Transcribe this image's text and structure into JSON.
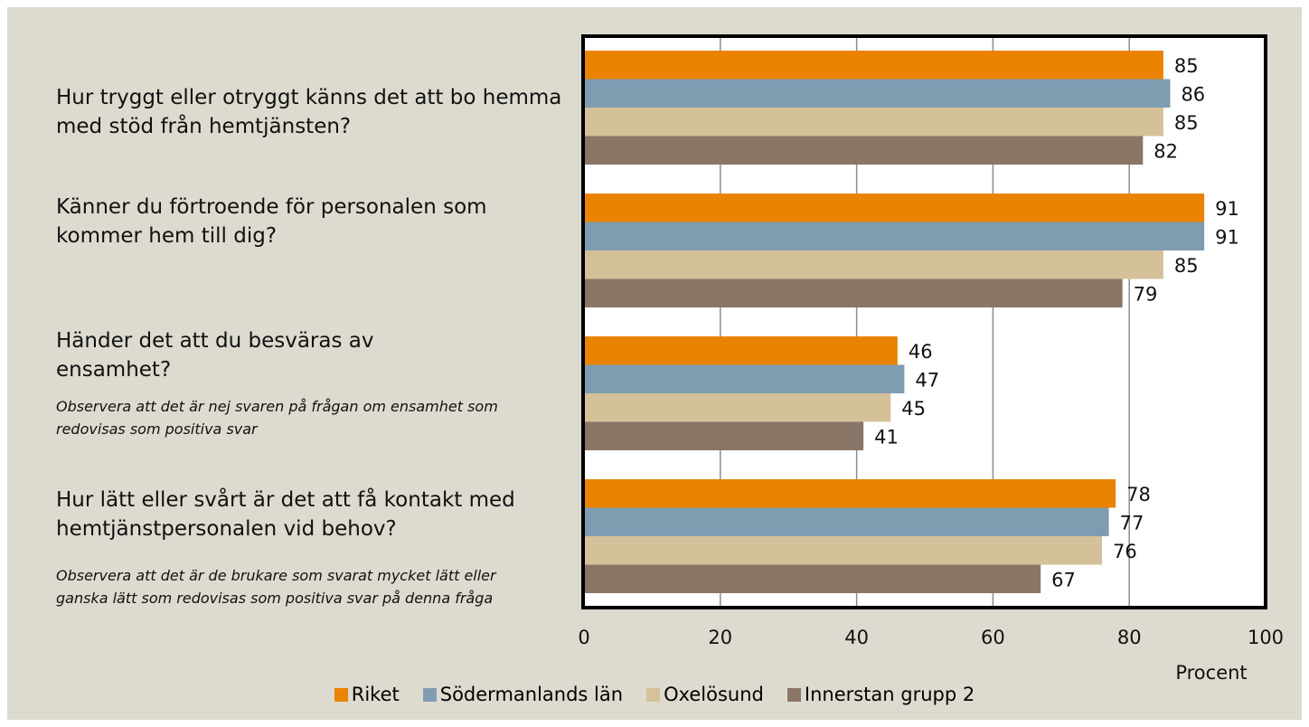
{
  "chart_data": {
    "type": "barh",
    "categories": [
      "Hur tryggt eller otryggt känns det att bo hemma med stöd från hemtjänsten?",
      "Känner du förtroende för personalen som kommer hem till dig?",
      "Händer det att du besväras av ensamhet?",
      "Hur lätt eller svårt är det att få kontakt med hemtjänstpersonalen vid behov?"
    ],
    "annotations": [
      "Observera att det är nej svaren på frågan om ensamhet som redovisas som positiva svar",
      "Observera att det är de brukare som svarat mycket lätt eller ganska lätt som redovisas som positiva svar på denna fråga"
    ],
    "series": [
      {
        "name": "Riket",
        "color": "#e98300",
        "values": [
          85,
          91,
          46,
          78
        ]
      },
      {
        "name": "Södermanlands län",
        "color": "#7f9cb0",
        "values": [
          86,
          91,
          47,
          77
        ]
      },
      {
        "name": "Oxelösund",
        "color": "#d4c199",
        "values": [
          85,
          85,
          45,
          76
        ]
      },
      {
        "name": "Innerstan grupp 2",
        "color": "#8a7666",
        "values": [
          82,
          79,
          41,
          67
        ]
      }
    ],
    "x_label": "Procent",
    "xlim": [
      0,
      100
    ],
    "xticks": [
      0,
      20,
      40,
      60,
      80,
      100
    ],
    "grid": true,
    "legend": "bottom"
  }
}
